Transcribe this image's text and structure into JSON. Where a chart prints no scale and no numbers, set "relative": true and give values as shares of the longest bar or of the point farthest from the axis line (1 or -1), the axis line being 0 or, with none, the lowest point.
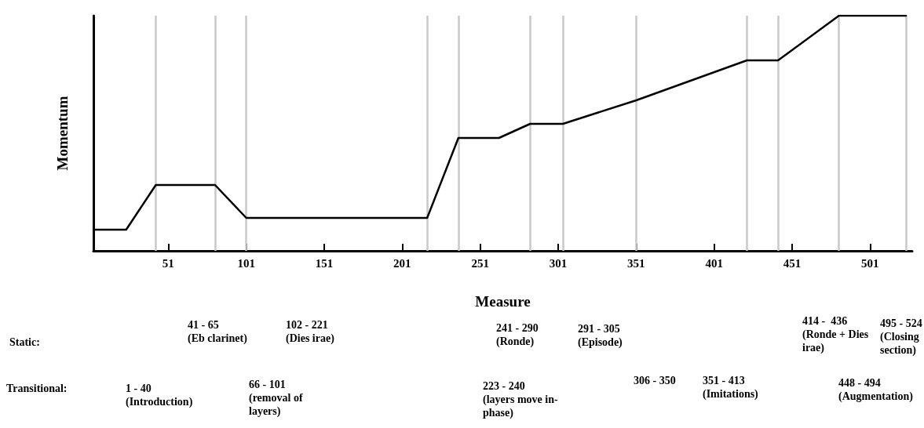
{
  "chart_data": {
    "type": "line",
    "relative": true,
    "xlabel": "Measure",
    "ylabel": "Momentum",
    "x": [
      3,
      24,
      43,
      81,
      101,
      217,
      237,
      263,
      283,
      304,
      351,
      422,
      442,
      481,
      524
    ],
    "series": [
      {
        "color": "#000000",
        "values": [
          0.09,
          0.09,
          0.28,
          0.28,
          0.14,
          0.14,
          0.48,
          0.48,
          0.54,
          0.54,
          0.64,
          0.81,
          0.81,
          1,
          1
        ]
      }
    ],
    "xlim": [
      3,
      528
    ],
    "xticks": [
      51,
      101,
      151,
      201,
      251,
      301,
      351,
      401,
      451,
      501
    ],
    "grid": false,
    "marker": "none",
    "line_style": "solid",
    "ref_lines": [
      {
        "axis": "x",
        "value": 43,
        "color": "#c8c8c8"
      },
      {
        "axis": "x",
        "value": 81,
        "color": "#c8c8c8"
      },
      {
        "axis": "x",
        "value": 101,
        "color": "#c8c8c8"
      },
      {
        "axis": "x",
        "value": 217,
        "color": "#c8c8c8"
      },
      {
        "axis": "x",
        "value": 237,
        "color": "#c8c8c8"
      },
      {
        "axis": "x",
        "value": 283,
        "color": "#c8c8c8"
      },
      {
        "axis": "x",
        "value": 304,
        "color": "#c8c8c8"
      },
      {
        "axis": "x",
        "value": 351,
        "color": "#c8c8c8"
      },
      {
        "axis": "x",
        "value": 422,
        "color": "#c8c8c8"
      },
      {
        "axis": "x",
        "value": 442,
        "color": "#c8c8c8"
      },
      {
        "axis": "x",
        "value": 481,
        "color": "#c8c8c8"
      },
      {
        "axis": "x",
        "value": 524,
        "color": "#c8c8c8"
      }
    ],
    "annotations": [
      "Static:",
      "41 - 65\n(Eb clarinet)",
      "102 - 221\n(Dies irae)",
      "241 - 290\n(Ronde)",
      "291 - 305\n(Episode)",
      "414 -  436\n(Ronde + Dies\nirae)",
      "495 - 524\n(Closing\nsection)",
      "Transitional:",
      "1 - 40\n(Introduction)",
      "66 - 101\n(removal of\nlayers)",
      "223 - 240\n(layers move in-\nphase)",
      "306 - 350",
      "351 - 413\n(Imitations)",
      "448 - 494\n(Augmentation)"
    ]
  }
}
